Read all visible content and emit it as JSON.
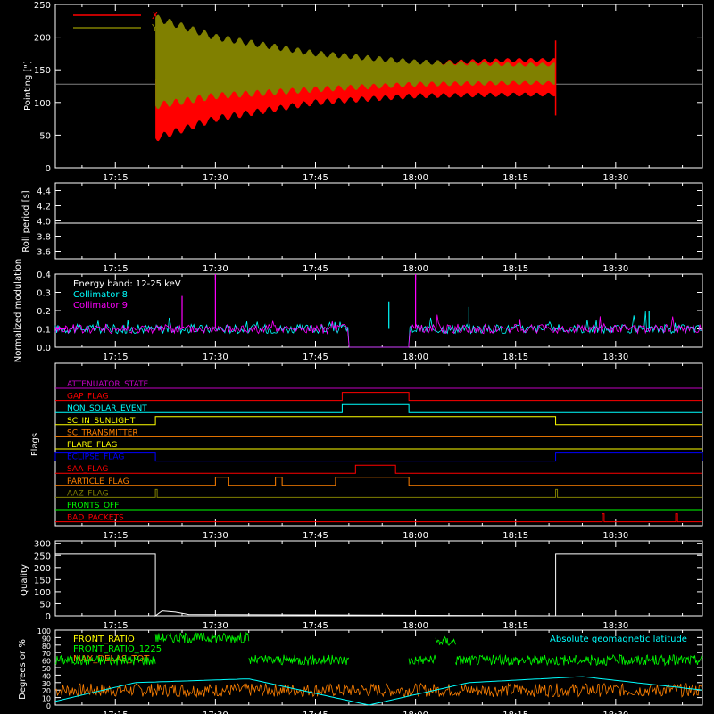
{
  "time_ticks": [
    "17:15",
    "17:30",
    "17:45",
    "18:00",
    "18:15",
    "18:30"
  ],
  "chart_data": [
    {
      "id": "pointing",
      "type": "area",
      "ylabel": "Pointing [\"]",
      "ylim": [
        0,
        250
      ],
      "yticks": [
        "0",
        "50",
        "100",
        "150",
        "200",
        "250"
      ],
      "legend": [
        {
          "name": "X",
          "color": "#ff0000"
        },
        {
          "name": "Y",
          "color": "#808000"
        }
      ],
      "x_range": [
        "17:21",
        "18:21"
      ],
      "reference_y": 128,
      "series": [
        {
          "name": "X",
          "color": "#ff0000",
          "x": [
            "17:21",
            "17:30",
            "17:45",
            "18:00",
            "18:15",
            "18:21"
          ],
          "upper": [
            135,
            140,
            150,
            160,
            165,
            165
          ],
          "lower": [
            45,
            75,
            100,
            110,
            112,
            112
          ]
        },
        {
          "name": "Y",
          "color": "#808000",
          "x": [
            "17:21",
            "17:30",
            "17:45",
            "18:00",
            "18:15",
            "18:21"
          ],
          "upper": [
            230,
            200,
            175,
            162,
            158,
            158
          ],
          "lower": [
            95,
            110,
            120,
            128,
            130,
            130
          ]
        }
      ]
    },
    {
      "id": "roll",
      "type": "line",
      "ylabel": "Roll period [s]",
      "ylim": [
        3.5,
        4.5
      ],
      "yticks": [
        "3.6",
        "3.8",
        "4.0",
        "4.2",
        "4.4"
      ],
      "series": [
        {
          "name": "",
          "color": "#ffffff",
          "x": [
            "17:06",
            "18:43"
          ],
          "values": [
            3.97,
            3.97
          ]
        }
      ]
    },
    {
      "id": "modulation",
      "type": "line",
      "ylabel": "Normalized modulation",
      "ylim": [
        0,
        0.4
      ],
      "yticks": [
        "0.0",
        "0.1",
        "0.2",
        "0.3",
        "0.4"
      ],
      "legend_title": "Energy band: 12-25 keV",
      "legend": [
        {
          "name": "Collimator 8",
          "color": "#00ffff"
        },
        {
          "name": "Collimator 9",
          "color": "#ff00ff"
        }
      ],
      "typical_level": 0.1,
      "gaps": [
        [
          "17:50",
          "17:59"
        ]
      ],
      "spikes": [
        {
          "x": "17:30",
          "y": 0.4,
          "color": "#ff00ff"
        },
        {
          "x": "18:00",
          "y": 0.4,
          "color": "#ff00ff"
        },
        {
          "x": "17:25",
          "y": 0.28,
          "color": "#ff00ff"
        },
        {
          "x": "17:56",
          "y": 0.25,
          "color": "#00ffff"
        },
        {
          "x": "18:08",
          "y": 0.22,
          "color": "#00ffff"
        },
        {
          "x": "18:35",
          "y": 0.2,
          "color": "#00ffff"
        }
      ]
    },
    {
      "id": "flags",
      "type": "line",
      "ylabel": "Flags",
      "flags": [
        {
          "name": "ATTENUATOR_STATE",
          "color": "#c000c0",
          "on": []
        },
        {
          "name": "GAP_FLAG",
          "color": "#ff0000",
          "on": [
            [
              "17:49",
              "17:59"
            ]
          ]
        },
        {
          "name": "NON_SOLAR_EVENT",
          "color": "#00ffff",
          "on": [
            [
              "17:49",
              "17:59"
            ]
          ]
        },
        {
          "name": "SC_IN_SUNLIGHT",
          "color": "#ffff00",
          "on": [
            [
              "17:21",
              "18:21"
            ]
          ]
        },
        {
          "name": "SC_TRANSMITTER",
          "color": "#ff8000",
          "on": []
        },
        {
          "name": "FLARE_FLAG",
          "color": "#ffff00",
          "on": []
        },
        {
          "name": "ECLIPSE_FLAG",
          "color": "#0000ff",
          "on": [
            [
              "17:06",
              "17:21"
            ],
            [
              "18:21",
              "18:43"
            ]
          ]
        },
        {
          "name": "SAA_FLAG",
          "color": "#ff0000",
          "on": [
            [
              "17:51",
              "17:57"
            ]
          ]
        },
        {
          "name": "PARTICLE_FLAG",
          "color": "#ff8000",
          "on": [
            [
              "17:30",
              "17:32"
            ],
            [
              "17:39",
              "17:40"
            ],
            [
              "17:48",
              "17:59"
            ]
          ]
        },
        {
          "name": "AAZ_FLAG",
          "color": "#808000",
          "on": [
            [
              "17:21",
              "17:21"
            ],
            [
              "18:21",
              "18:21"
            ]
          ]
        },
        {
          "name": "FRONTS_OFF",
          "color": "#00ff00",
          "on": []
        },
        {
          "name": "BAD_PACKETS",
          "color": "#ff0000",
          "on": [
            [
              "18:28",
              "18:28"
            ],
            [
              "18:39",
              "18:39"
            ]
          ]
        }
      ]
    },
    {
      "id": "quality",
      "type": "line",
      "ylabel": "Quality",
      "ylim": [
        0,
        310
      ],
      "yticks": [
        "0",
        "50",
        "100",
        "150",
        "200",
        "250",
        "300"
      ],
      "series": [
        {
          "name": "",
          "color": "#ffffff",
          "x": [
            "17:06",
            "17:21",
            "17:21",
            "17:22",
            "17:24",
            "17:26",
            "18:21",
            "18:21",
            "18:43"
          ],
          "values": [
            255,
            255,
            0,
            20,
            15,
            5,
            0,
            255,
            255
          ]
        }
      ]
    },
    {
      "id": "ratios",
      "type": "line",
      "ylabel": "Degrees or %",
      "ylim": [
        0,
        100
      ],
      "yticks": [
        "0",
        "10",
        "20",
        "30",
        "40",
        "50",
        "60",
        "70",
        "80",
        "90",
        "100"
      ],
      "legend": [
        {
          "name": "FRONT_RATIO",
          "color": "#ffff00"
        },
        {
          "name": "FRONT_RATIO_1225",
          "color": "#00ff00"
        },
        {
          "name": "MAX_DELAS_TOT",
          "color": "#ff8000"
        }
      ],
      "right_label": {
        "text": "Absolute geomagnetic latitude",
        "color": "#00ffff"
      },
      "green_levels": [
        {
          "x": [
            "17:06",
            "17:21"
          ],
          "y": 60
        },
        {
          "x": [
            "17:21",
            "17:35"
          ],
          "y": 90
        },
        {
          "x": [
            "17:35",
            "17:50"
          ],
          "y": 60
        },
        {
          "x": [
            "17:59",
            "18:03"
          ],
          "y": 60
        },
        {
          "x": [
            "18:03",
            "18:06"
          ],
          "y": 85
        },
        {
          "x": [
            "18:06",
            "18:43"
          ],
          "y": 60
        }
      ],
      "orange_level": 20,
      "latitude": {
        "x": [
          "17:06",
          "17:18",
          "17:35",
          "17:53",
          "18:08",
          "18:25",
          "18:43"
        ],
        "y": [
          5,
          30,
          35,
          0,
          30,
          38,
          20
        ]
      }
    }
  ]
}
